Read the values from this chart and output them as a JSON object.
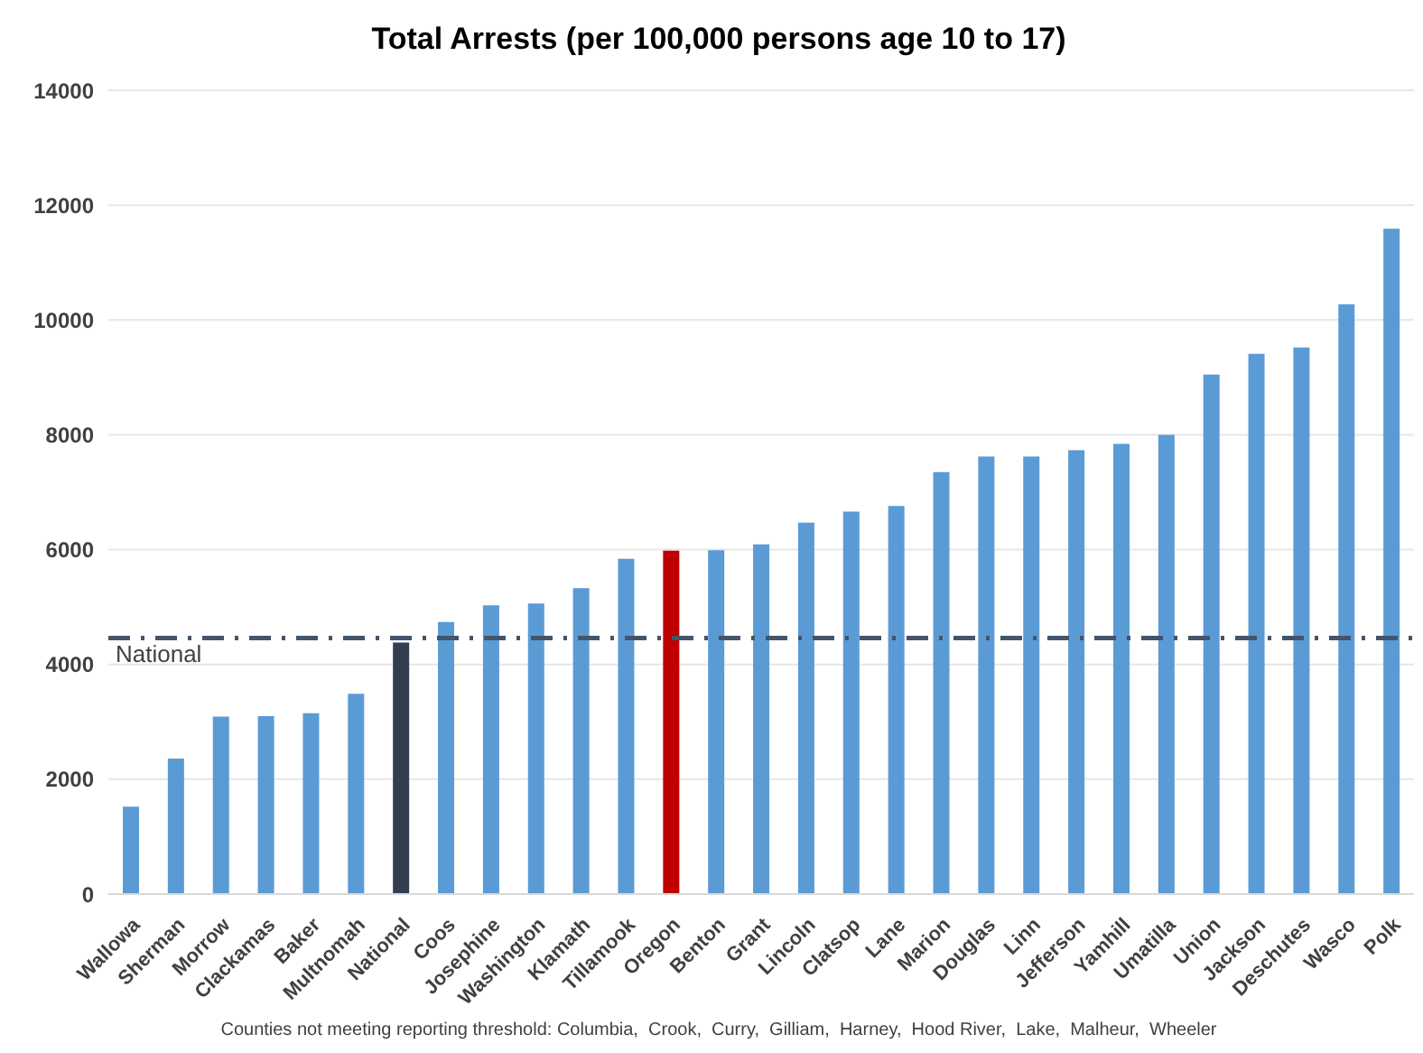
{
  "chart_data": {
    "type": "bar",
    "title": "Total Arrests (per 100,000 persons age 10 to 17)",
    "categories": [
      "Wallowa",
      "Sherman",
      "Morrow",
      "Clackamas",
      "Baker",
      "Multnomah",
      "National",
      "Coos",
      "Josephine",
      "Washington",
      "Klamath",
      "Tillamook",
      "Oregon",
      "Benton",
      "Grant",
      "Lincoln",
      "Clatsop",
      "Lane",
      "Marion",
      "Douglas",
      "Linn",
      "Jefferson",
      "Yamhill",
      "Umatilla",
      "Union",
      "Jackson",
      "Deschutes",
      "Wasco",
      "Polk"
    ],
    "values": [
      1520,
      2360,
      3090,
      3100,
      3150,
      3490,
      4380,
      4740,
      5030,
      5060,
      5330,
      5840,
      5980,
      5990,
      6090,
      6470,
      6660,
      6760,
      7350,
      7620,
      7620,
      7730,
      7840,
      8000,
      9050,
      9410,
      9520,
      10270,
      11590
    ],
    "colors": [
      "#5b9bd5",
      "#5b9bd5",
      "#5b9bd5",
      "#5b9bd5",
      "#5b9bd5",
      "#5b9bd5",
      "#323f4f",
      "#5b9bd5",
      "#5b9bd5",
      "#5b9bd5",
      "#5b9bd5",
      "#5b9bd5",
      "#c00000",
      "#5b9bd5",
      "#5b9bd5",
      "#5b9bd5",
      "#5b9bd5",
      "#5b9bd5",
      "#5b9bd5",
      "#5b9bd5",
      "#5b9bd5",
      "#5b9bd5",
      "#5b9bd5",
      "#5b9bd5",
      "#5b9bd5",
      "#5b9bd5",
      "#5b9bd5",
      "#5b9bd5",
      "#5b9bd5"
    ],
    "ylim": [
      0,
      14000
    ],
    "yticks": [
      0,
      2000,
      4000,
      6000,
      8000,
      10000,
      12000,
      14000
    ],
    "grid": "y",
    "ref_lines": [
      {
        "axis": "y",
        "value": 4460,
        "label": "National",
        "color": "#44546a",
        "line_style": "dashdot"
      }
    ],
    "annotations": [
      "Counties not meeting reporting threshold: Columbia,  Crook,  Curry,  Gilliam,  Harney,  Hood River,  Lake,  Malheur,  Wheeler"
    ]
  }
}
